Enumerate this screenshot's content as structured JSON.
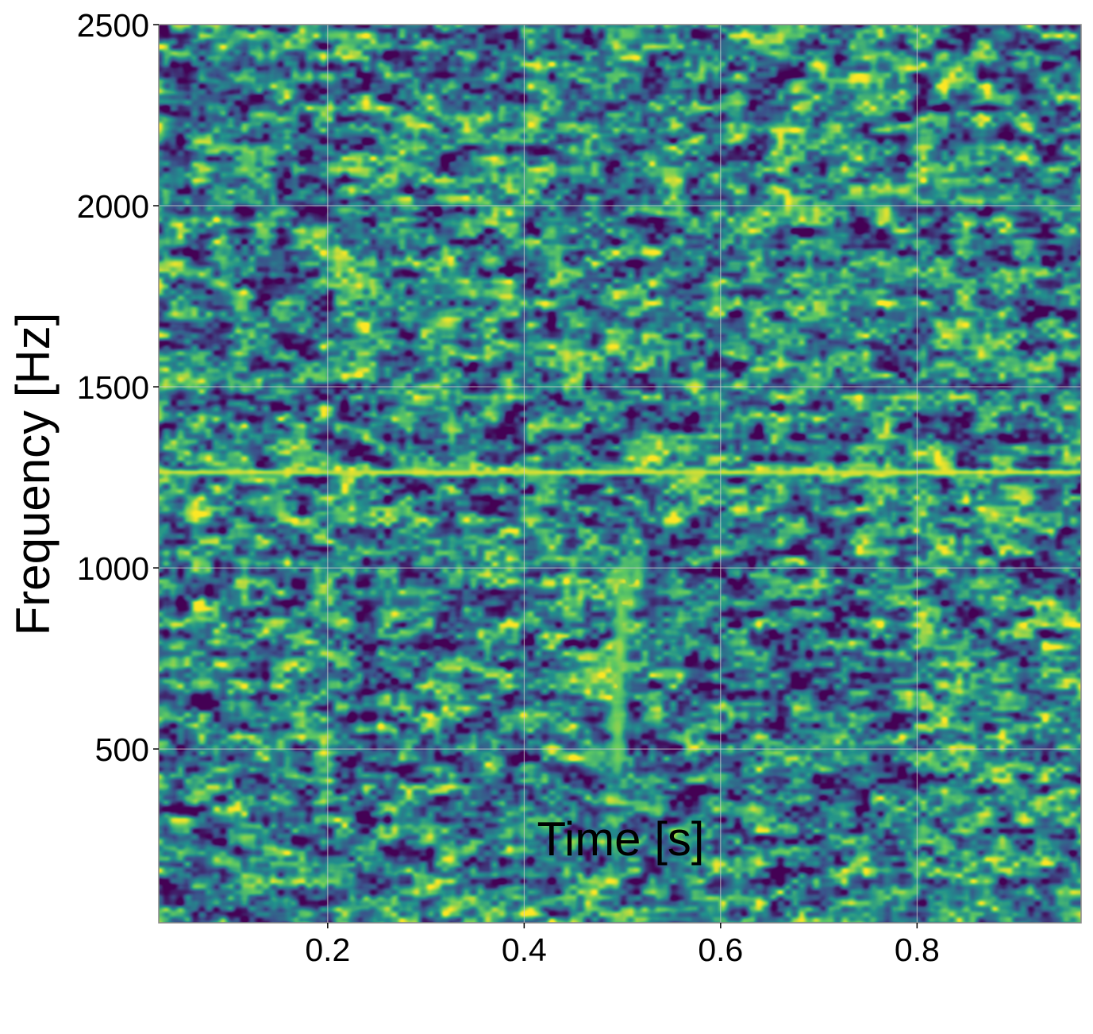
{
  "chart_data": {
    "type": "heatmap",
    "subtype": "spectrogram",
    "title": "",
    "xlabel": "Time [s]",
    "ylabel": "Frequency [Hz]",
    "xlim": [
      0.028,
      0.967
    ],
    "ylim": [
      20,
      2500
    ],
    "xticks": [
      0.2,
      0.4,
      0.6,
      0.8
    ],
    "xtick_labels": [
      "0.2",
      "0.4",
      "0.6",
      "0.8"
    ],
    "yticks": [
      500,
      1000,
      1500,
      2000,
      2500
    ],
    "ytick_labels": [
      "500",
      "1000",
      "1500",
      "2000",
      "2500"
    ],
    "grid": true,
    "colormap": "viridis",
    "colormap_stops": [
      "#440154",
      "#3b528b",
      "#21918c",
      "#5ec962",
      "#fde725"
    ],
    "background_level": 0.45,
    "features": [
      {
        "kind": "horizontal_line",
        "frequency": 1265,
        "time_range": [
          0.028,
          0.967
        ],
        "intensity": 0.92
      },
      {
        "kind": "chirp_track",
        "points": [
          {
            "t": 0.495,
            "f": 480,
            "intensity": 0.78
          },
          {
            "t": 0.495,
            "f": 560,
            "intensity": 0.82
          },
          {
            "t": 0.495,
            "f": 680,
            "intensity": 0.8
          },
          {
            "t": 0.497,
            "f": 780,
            "intensity": 0.86
          },
          {
            "t": 0.498,
            "f": 880,
            "intensity": 0.8
          },
          {
            "t": 0.503,
            "f": 960,
            "intensity": 0.78
          },
          {
            "t": 0.515,
            "f": 985,
            "intensity": 0.76
          }
        ]
      }
    ]
  }
}
